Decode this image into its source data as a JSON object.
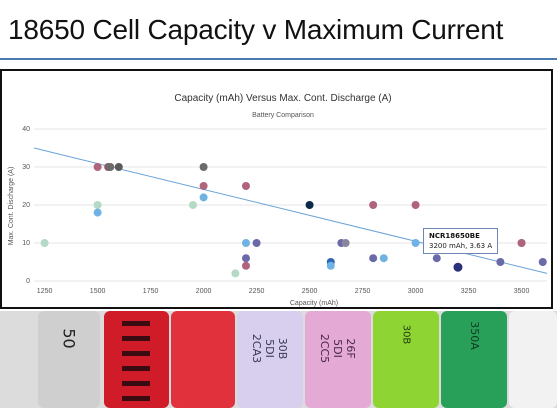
{
  "slide": {
    "title": "18650 Cell Capacity v Maximum Current"
  },
  "tooltip": {
    "name": "NCR18650BE",
    "detail": "3200 mAh, 3.63 A"
  },
  "photo_labels": [
    "50",
    "30B\n5DI\n2CA3",
    "26F\n5DI\n2CC5",
    "30B",
    "350A"
  ],
  "chart_data": {
    "type": "scatter",
    "title": "Capacity (mAh) Versus Max. Cont. Discharge (A)",
    "subtitle": "Battery Comparison",
    "xlabel": "Capacity (mAh)",
    "ylabel": "Max. Cont. Discharge (A)",
    "xlim": [
      1200,
      3620
    ],
    "ylim": [
      0,
      40
    ],
    "x_ticks": [
      1250,
      1500,
      1750,
      2000,
      2250,
      2500,
      2750,
      3000,
      3250,
      3500
    ],
    "y_ticks": [
      0,
      10,
      20,
      30,
      40
    ],
    "gridlines": "horizontal",
    "trendline": {
      "x": [
        1200,
        3620
      ],
      "y": [
        35,
        2
      ]
    },
    "points": [
      {
        "x": 1250,
        "y": 10,
        "color": "#b4d9c4"
      },
      {
        "x": 1500,
        "y": 30,
        "color": "#b0637c"
      },
      {
        "x": 1500,
        "y": 20,
        "color": "#b4d9c4"
      },
      {
        "x": 1500,
        "y": 18,
        "color": "#6fb3e4"
      },
      {
        "x": 1550,
        "y": 30,
        "color": "#8a5a64"
      },
      {
        "x": 1560,
        "y": 30,
        "color": "#6b6b6b"
      },
      {
        "x": 1600,
        "y": 30,
        "color": "#5a5a5a"
      },
      {
        "x": 1950,
        "y": 20,
        "color": "#b4d9c4"
      },
      {
        "x": 2000,
        "y": 30,
        "color": "#6b6b6b"
      },
      {
        "x": 2000,
        "y": 25,
        "color": "#b0637c"
      },
      {
        "x": 2000,
        "y": 22,
        "color": "#6fb3e4"
      },
      {
        "x": 2150,
        "y": 2,
        "color": "#b4d9c4"
      },
      {
        "x": 2200,
        "y": 25,
        "color": "#b0637c"
      },
      {
        "x": 2200,
        "y": 10,
        "color": "#6fb3e4"
      },
      {
        "x": 2200,
        "y": 6,
        "color": "#6a6aa8"
      },
      {
        "x": 2200,
        "y": 4,
        "color": "#b0637c"
      },
      {
        "x": 2250,
        "y": 10,
        "color": "#6a6aa8"
      },
      {
        "x": 2500,
        "y": 20,
        "color": "#0b2a4a"
      },
      {
        "x": 2600,
        "y": 5,
        "color": "#2f66b0"
      },
      {
        "x": 2600,
        "y": 4,
        "color": "#6fb3e4"
      },
      {
        "x": 2650,
        "y": 10,
        "color": "#6a6aa8"
      },
      {
        "x": 2670,
        "y": 10,
        "color": "#8a86a0"
      },
      {
        "x": 2800,
        "y": 20,
        "color": "#b0637c"
      },
      {
        "x": 2800,
        "y": 6,
        "color": "#6a6aa8"
      },
      {
        "x": 2850,
        "y": 6,
        "color": "#6fb3e4"
      },
      {
        "x": 3000,
        "y": 20,
        "color": "#b0637c"
      },
      {
        "x": 3000,
        "y": 10,
        "color": "#6fb3e4"
      },
      {
        "x": 3100,
        "y": 6,
        "color": "#6a6aa8"
      },
      {
        "x": 3200,
        "y": 4,
        "color": "#3a3d8a"
      },
      {
        "x": 3200,
        "y": 3.63,
        "color": "#2a2f7a"
      },
      {
        "x": 3400,
        "y": 5,
        "color": "#6a6aa8"
      },
      {
        "x": 3500,
        "y": 10,
        "color": "#6fb3e4"
      },
      {
        "x": 3500,
        "y": 10,
        "color": "#b0637c"
      },
      {
        "x": 3600,
        "y": 5,
        "color": "#6a6aa8"
      }
    ],
    "colors": {
      "trendline": "#6aa3d8",
      "grid": "#e6e6e6",
      "axis_text": "#555555",
      "title_text": "#333333"
    }
  },
  "cells": [
    {
      "color": "#c9c9c9"
    },
    {
      "color": "#d01c28"
    },
    {
      "color": "#d8d8e8"
    },
    {
      "color": "#e2a7d4"
    },
    {
      "color": "#8ed534"
    },
    {
      "color": "#29a05a"
    }
  ]
}
